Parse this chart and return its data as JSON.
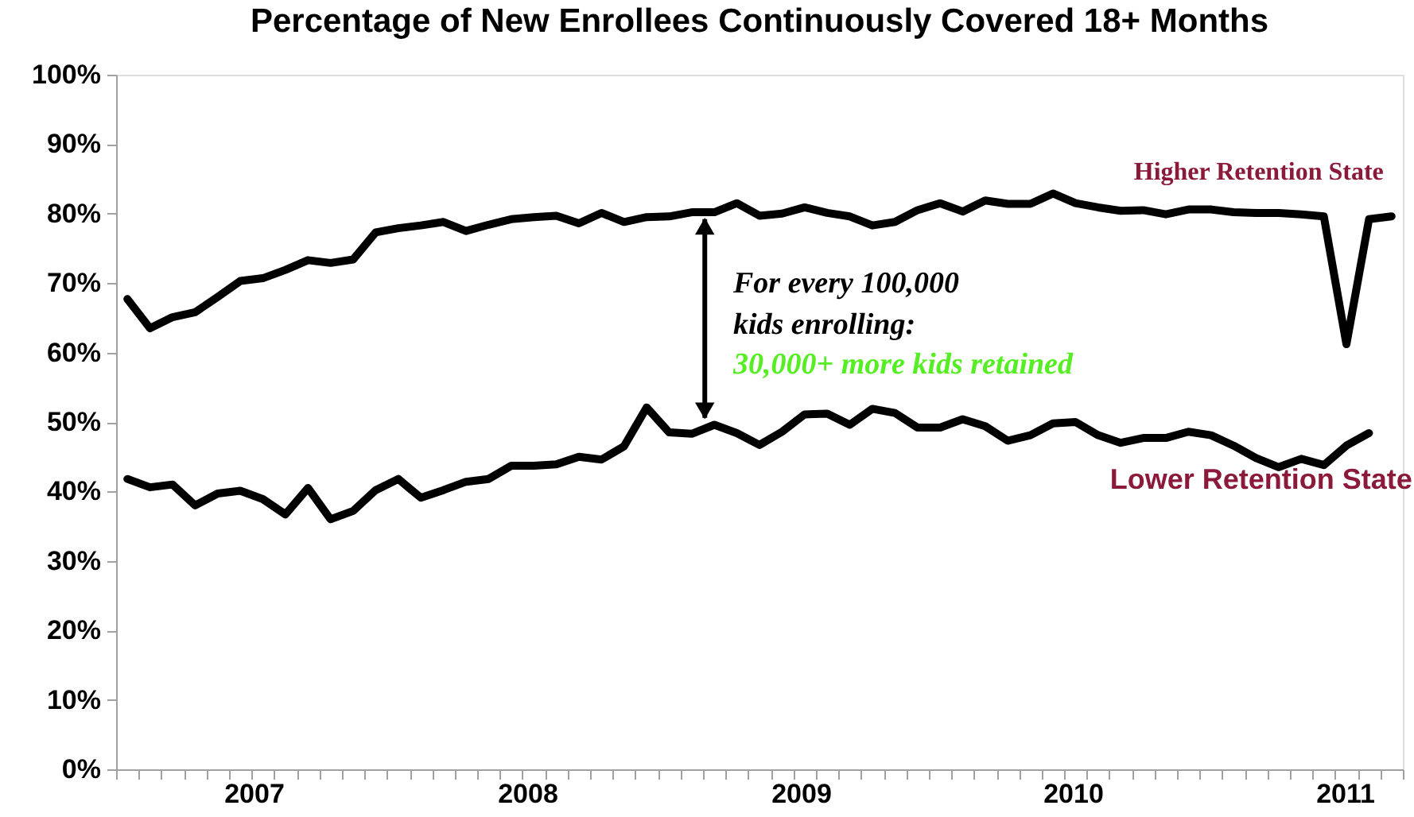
{
  "chart_data": {
    "type": "line",
    "title": "Percentage of New Enrollees Continuously Covered 18+ Months",
    "categories": [
      null,
      null,
      null,
      null,
      null,
      null,
      null,
      null,
      null,
      null,
      null,
      null,
      null,
      null,
      null,
      null,
      null,
      null,
      null,
      null,
      null,
      null,
      null,
      null,
      null,
      null,
      null,
      null,
      null,
      null,
      null,
      null,
      null,
      null,
      null,
      null,
      null,
      null,
      null,
      null,
      null,
      null,
      null,
      null,
      null,
      null,
      null,
      null,
      null,
      null,
      null,
      null,
      null,
      null,
      null,
      null,
      null
    ],
    "series": [
      {
        "name": "Higher Retention State",
        "color": "#000000",
        "values": [
          67.7,
          63.5,
          65.1,
          65.8,
          68.0,
          70.3,
          70.7,
          71.9,
          73.3,
          72.9,
          73.4,
          77.3,
          77.9,
          78.3,
          78.8,
          77.5,
          78.4,
          79.2,
          79.5,
          79.7,
          78.6,
          80.1,
          78.8,
          79.5,
          79.6,
          80.2,
          80.2,
          81.5,
          79.7,
          80.0,
          80.9,
          80.1,
          79.6,
          78.3,
          78.8,
          80.5,
          81.5,
          80.3,
          81.9,
          81.4,
          81.4,
          82.9,
          81.5,
          80.9,
          80.4,
          80.5,
          79.9,
          80.6,
          80.6,
          80.2,
          80.1,
          80.1,
          79.9,
          79.6,
          61.2,
          79.2,
          79.6
        ]
      },
      {
        "name": "Lower Retention State",
        "color": "#000000",
        "values": [
          41.8,
          40.6,
          41.0,
          38.0,
          39.7,
          40.1,
          38.9,
          36.7,
          40.5,
          36.0,
          37.2,
          40.2,
          41.8,
          39.1,
          40.2,
          41.4,
          41.8,
          43.7,
          43.7,
          43.9,
          45.0,
          44.6,
          46.5,
          52.1,
          48.5,
          48.3,
          49.6,
          48.4,
          46.7,
          48.6,
          51.1,
          51.2,
          49.6,
          51.9,
          51.3,
          49.2,
          49.2,
          50.4,
          49.4,
          47.3,
          48.1,
          49.8,
          50.0,
          48.1,
          47.0,
          47.7,
          47.7,
          48.6,
          48.1,
          46.6,
          44.8,
          43.5,
          44.7,
          43.8,
          46.6,
          48.4,
          null
        ]
      }
    ],
    "annotations": [
      "2007",
      "2008",
      "2009",
      "2010",
      "2011",
      "For every 100,000",
      "kids enrolling:",
      "30,000+ more kids retained"
    ],
    "ylim": [
      0,
      100
    ],
    "yticks": [
      {
        "value": 0,
        "label": "0%"
      },
      {
        "value": 10,
        "label": "10%"
      },
      {
        "value": 20,
        "label": "20%"
      },
      {
        "value": 30,
        "label": "30%"
      },
      {
        "value": 40,
        "label": "40%"
      },
      {
        "value": 50,
        "label": "50%"
      },
      {
        "value": 60,
        "label": "60%"
      },
      {
        "value": 70,
        "label": "70%"
      },
      {
        "value": 80,
        "label": "80%"
      },
      {
        "value": 90,
        "label": "90%"
      },
      {
        "value": 100,
        "label": "100%"
      }
    ],
    "grid": false,
    "marker": "none",
    "line_style": "solid"
  }
}
